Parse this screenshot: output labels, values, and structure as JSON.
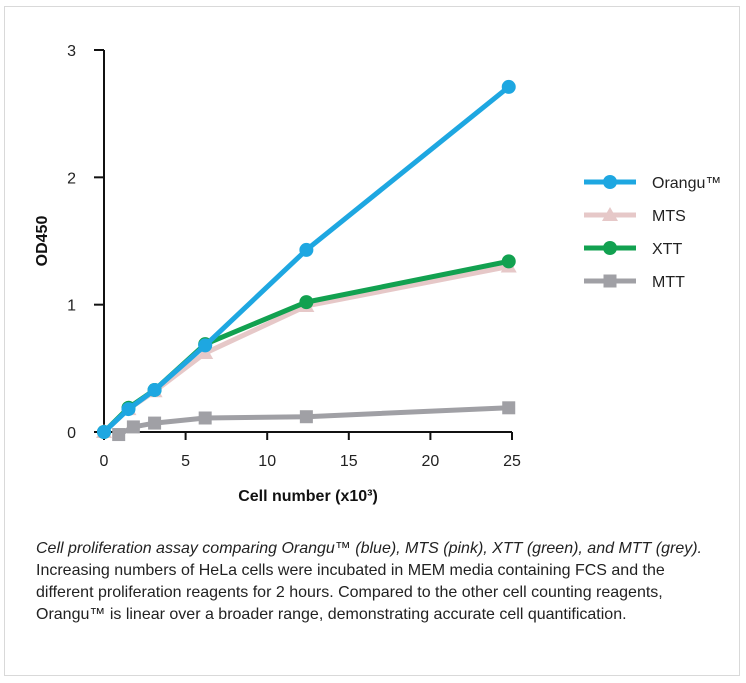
{
  "chart_data": {
    "type": "line",
    "xlabel": "Cell number (x10³)",
    "ylabel": "OD450",
    "xlim": [
      0,
      25
    ],
    "ylim": [
      0,
      3
    ],
    "xticks": [
      0,
      5,
      10,
      15,
      20,
      25
    ],
    "yticks": [
      0,
      1,
      2,
      3
    ],
    "grid": false,
    "legend_position": "right",
    "series": [
      {
        "name": "Orangu™",
        "color": "#1ea7e1",
        "marker": "circle",
        "points": [
          [
            0,
            0.0
          ],
          [
            1.5,
            0.18
          ],
          [
            3.1,
            0.33
          ],
          [
            6.2,
            0.68
          ],
          [
            12.4,
            1.43
          ],
          [
            24.8,
            2.71
          ]
        ]
      },
      {
        "name": "MTS",
        "color": "#e6c8c8",
        "marker": "triangle",
        "points": [
          [
            0,
            0.0
          ],
          [
            1.5,
            0.18
          ],
          [
            3.1,
            0.32
          ],
          [
            6.2,
            0.62
          ],
          [
            12.4,
            0.99
          ],
          [
            24.8,
            1.3
          ]
        ]
      },
      {
        "name": "XTT",
        "color": "#12a150",
        "marker": "circle",
        "points": [
          [
            0,
            0.0
          ],
          [
            1.5,
            0.19
          ],
          [
            3.1,
            0.33
          ],
          [
            6.2,
            0.69
          ],
          [
            12.4,
            1.02
          ],
          [
            24.8,
            1.34
          ]
        ]
      },
      {
        "name": "MTT",
        "color": "#a0a0a5",
        "marker": "square",
        "points": [
          [
            0.9,
            -0.02
          ],
          [
            1.8,
            0.04
          ],
          [
            3.1,
            0.07
          ],
          [
            6.2,
            0.11
          ],
          [
            12.4,
            0.12
          ],
          [
            24.8,
            0.19
          ]
        ]
      }
    ]
  },
  "caption": {
    "italic": "Cell proliferation assay comparing Orangu™ (blue), MTS (pink), XTT (green), and MTT (grey).",
    "text": " Increasing numbers of HeLa cells were incubated in MEM media containing FCS and the different proliferation reagents for 2 hours. Compared to the other cell counting reagents, Orangu™ is linear over a broader range, demonstrating accurate cell quantification."
  }
}
